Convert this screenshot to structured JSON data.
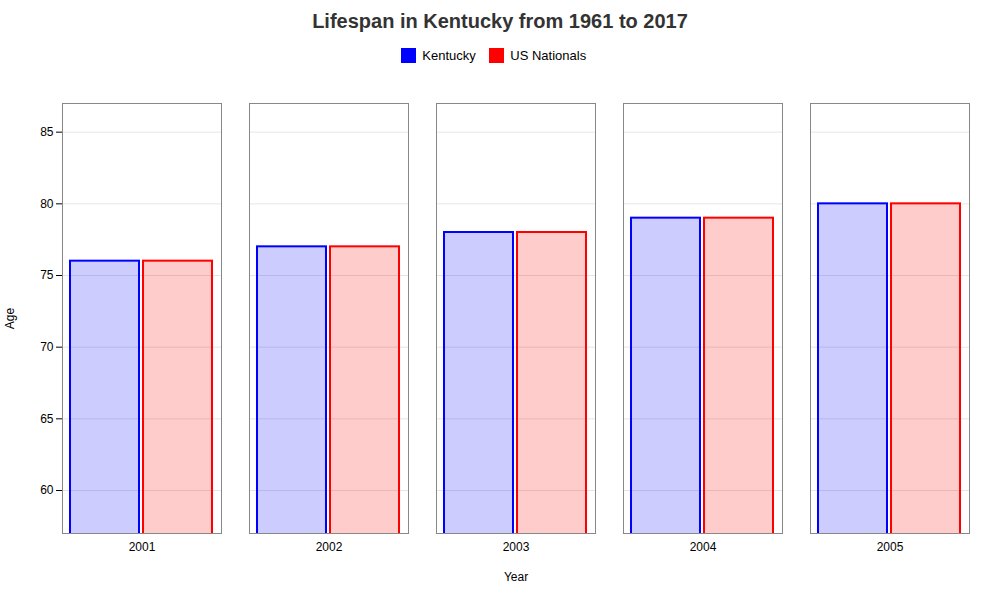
{
  "chart_data": {
    "type": "bar",
    "title": "Lifespan in Kentucky from 1961 to 2017",
    "xlabel": "Year",
    "ylabel": "Age",
    "categories": [
      "2001",
      "2002",
      "2003",
      "2004",
      "2005"
    ],
    "series": [
      {
        "name": "Kentucky",
        "color": "#0000ff",
        "values": [
          76,
          77,
          78,
          79,
          80
        ]
      },
      {
        "name": "US Nationals",
        "color": "#ff0000",
        "values": [
          76,
          77,
          78,
          79,
          80
        ]
      }
    ],
    "ylim": [
      57,
      87
    ],
    "yticks": [
      60,
      65,
      70,
      75,
      80,
      85
    ],
    "grid": true,
    "legend": "top"
  }
}
